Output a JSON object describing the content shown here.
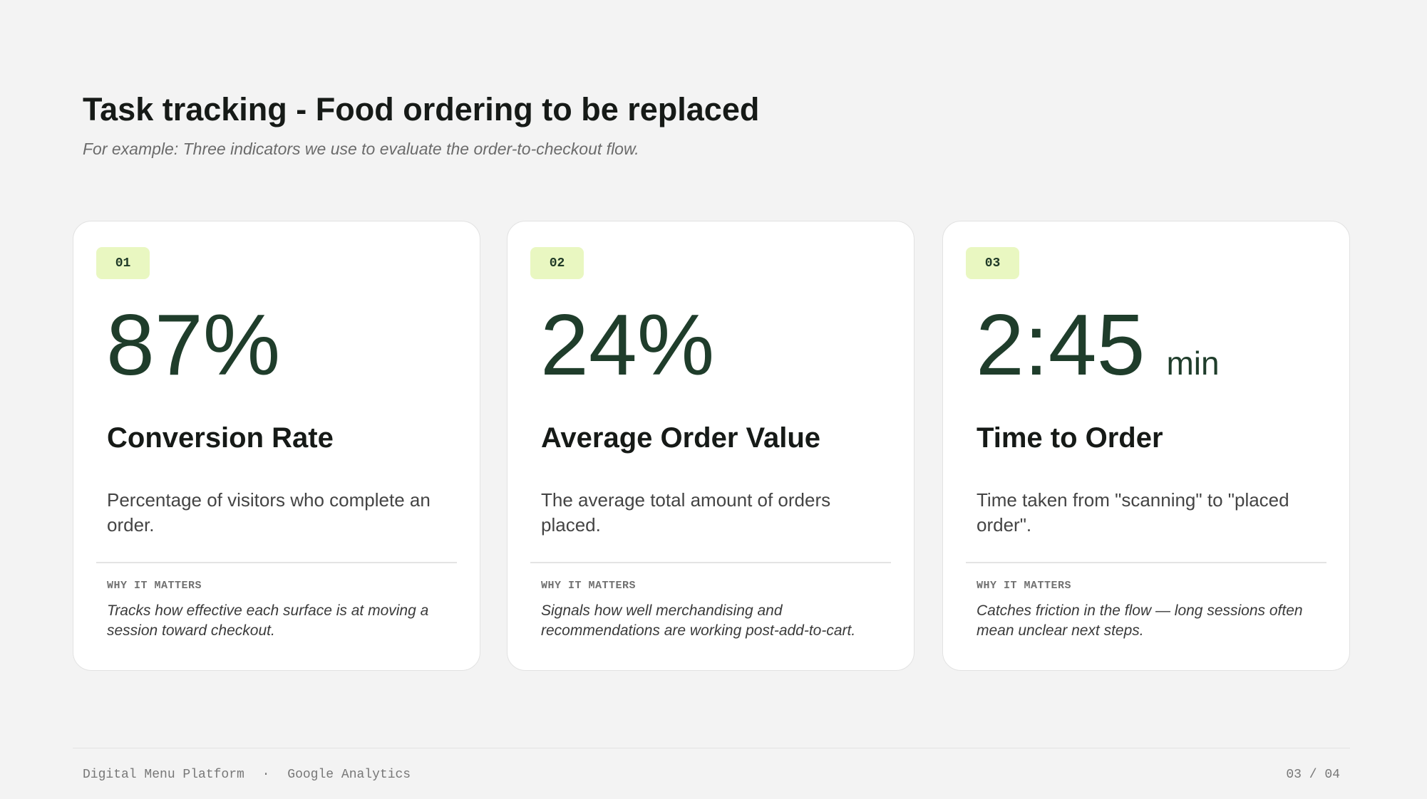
{
  "header": {
    "title": "Task tracking - Food ordering to be replaced",
    "subtitle": "For example: Three indicators we use to evaluate the order-to-checkout flow."
  },
  "cards": [
    {
      "number": "01",
      "value": "87%",
      "label": "Conversion Rate",
      "description": "Percentage of visitors who complete an order.",
      "why_label": "WHY IT MATTERS",
      "why_text": "Tracks how effective each surface is at moving a session toward checkout."
    },
    {
      "number": "02",
      "value": "24%",
      "label": "Average Order Value",
      "description": "The average total amount of orders placed.",
      "why_label": "WHY IT MATTERS",
      "why_text": "Signals how well merchandising and recommendations are working post-add-to-cart."
    },
    {
      "number": "03",
      "value": "2:45",
      "unit": "min",
      "label": "Time to Order",
      "description": "Time taken from \"scanning\" to \"placed order\".",
      "why_label": "WHY IT MATTERS",
      "why_text": "Catches friction in the flow — long sessions often mean unclear next steps."
    }
  ],
  "footer": {
    "product": "Digital Menu Platform",
    "separator": "·",
    "source": "Google Analytics",
    "page": "03 / 04"
  }
}
